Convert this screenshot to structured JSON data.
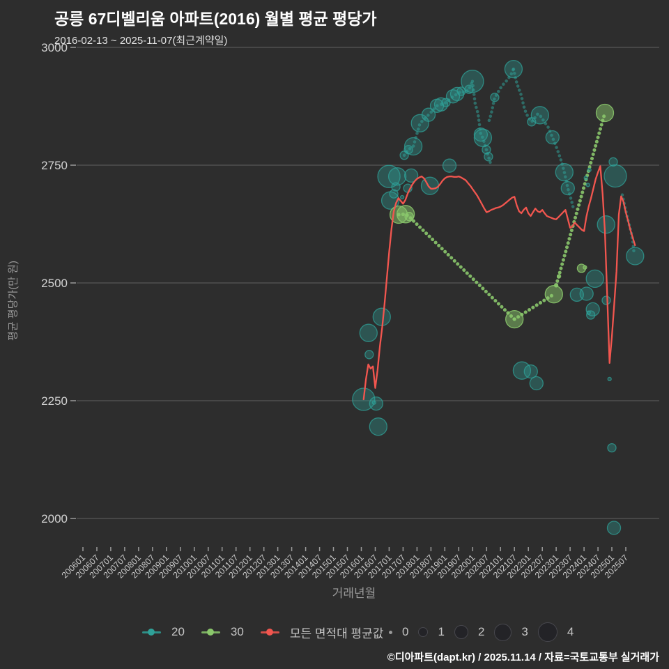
{
  "header": {
    "title": "공릉 67디벨리움 아파트(2016) 월별 평균 평당가",
    "subtitle": "2016-02-13 ~ 2025-11-07(최근계약일)"
  },
  "footer": {
    "credit": "©디아파트(dapt.kr) / 2025.11.14 / 자료=국토교통부 실거래가"
  },
  "chart_data": {
    "type": "scatter",
    "x_axis": {
      "title": "거래년월",
      "tick_labels": [
        "200601",
        "200607",
        "200701",
        "200707",
        "200801",
        "200807",
        "200901",
        "200907",
        "201001",
        "201007",
        "201101",
        "201107",
        "201201",
        "201207",
        "201301",
        "201307",
        "201401",
        "201407",
        "201501",
        "201507",
        "201601",
        "201607",
        "201701",
        "201707",
        "201801",
        "201807",
        "201901",
        "201907",
        "202001",
        "202007",
        "202101",
        "202107",
        "202201",
        "202207",
        "202301",
        "202307",
        "202401",
        "202407",
        "202501",
        "202507"
      ]
    },
    "y_axis": {
      "title": "평균 평당가(만 원)",
      "ticks": [
        3000,
        2750,
        2500,
        2250,
        2000
      ]
    },
    "legend_size_labels": [
      "0",
      "1",
      "2",
      "3",
      "4"
    ],
    "colors": {
      "py20": "#2fa198",
      "py30": "#8ac76b",
      "avg": "#f2564f",
      "grid": "#616161",
      "tick": "#9b9b9b",
      "axis_text": "#cccccc",
      "background": "#2d2d2d"
    },
    "series": {
      "py20": {
        "label": "20",
        "chains": [
          [
            [
              138.5,
              2771
            ],
            [
              140.3,
              2783
            ],
            [
              142.4,
              2790
            ],
            [
              145.3,
              2839
            ],
            [
              147.2,
              2848
            ],
            [
              149.0,
              2857
            ],
            [
              150.8,
              2866
            ],
            [
              152.6,
              2876
            ],
            [
              154.4,
              2879
            ],
            [
              156.5,
              2883
            ],
            [
              159.5,
              2896
            ],
            [
              161.3,
              2901
            ],
            [
              163.1,
              2907
            ],
            [
              164.6,
              2904
            ],
            [
              166.4,
              2911
            ],
            [
              167.9,
              2928
            ]
          ],
          [
            [
              167.9,
              2928
            ],
            [
              169.1,
              2880
            ],
            [
              170.3,
              2860
            ],
            [
              171.5,
              2815
            ],
            [
              172.4,
              2808
            ],
            [
              173.9,
              2783
            ],
            [
              174.8,
              2768
            ],
            [
              175.7,
              2754
            ]
          ],
          [
            [
              175.1,
              2845
            ],
            [
              176.0,
              2859
            ],
            [
              177.5,
              2894
            ],
            [
              178.4,
              2900
            ],
            [
              179.6,
              2911
            ],
            [
              180.5,
              2917
            ],
            [
              181.4,
              2923
            ],
            [
              182.6,
              2929
            ],
            [
              183.5,
              2935
            ],
            [
              184.4,
              2941
            ],
            [
              185.6,
              2954
            ]
          ],
          [
            [
              185.6,
              2954
            ],
            [
              186.8,
              2928
            ],
            [
              188.0,
              2910
            ],
            [
              188.6,
              2904
            ],
            [
              190.4,
              2868
            ],
            [
              191.9,
              2852
            ],
            [
              193.4,
              2842
            ],
            [
              194.6,
              2849
            ],
            [
              196.1,
              2859
            ],
            [
              197.0,
              2856
            ],
            [
              198.5,
              2845
            ],
            [
              200.6,
              2830
            ],
            [
              202.4,
              2809
            ],
            [
              204.5,
              2783
            ],
            [
              206.3,
              2757
            ],
            [
              207.5,
              2735
            ],
            [
              209.0,
              2701
            ],
            [
              210.5,
              2676
            ],
            [
              211.6,
              2655
            ]
          ],
          [
            [
              232.5,
              2687
            ],
            [
              233.7,
              2660
            ],
            [
              234.9,
              2634
            ],
            [
              236.1,
              2612
            ],
            [
              237.0,
              2590
            ],
            [
              237.6,
              2560
            ]
          ]
        ],
        "bubbles": [
          [
            121.0,
            2253,
            4
          ],
          [
            123.1,
            2394,
            3
          ],
          [
            123.4,
            2348,
            1
          ],
          [
            125.5,
            2246,
            0
          ],
          [
            126.4,
            2244,
            2
          ],
          [
            127.3,
            2195,
            3
          ],
          [
            128.8,
            2428,
            3
          ],
          [
            131.9,
            2726,
            4
          ],
          [
            132.5,
            2675,
            3
          ],
          [
            134.0,
            2689,
            1
          ],
          [
            134.9,
            2704,
            1
          ],
          [
            135.5,
            2726,
            3
          ],
          [
            137.6,
            2682,
            0
          ],
          [
            140.0,
            2701,
            1
          ],
          [
            141.5,
            2728,
            2
          ],
          [
            138.5,
            2771,
            1
          ],
          [
            140.3,
            2783,
            1
          ],
          [
            142.4,
            2790,
            3
          ],
          [
            145.3,
            2839,
            3
          ],
          [
            149.0,
            2857,
            2
          ],
          [
            152.6,
            2876,
            2
          ],
          [
            154.4,
            2879,
            2
          ],
          [
            156.5,
            2883,
            1
          ],
          [
            159.5,
            2896,
            2
          ],
          [
            161.3,
            2901,
            2
          ],
          [
            163.1,
            2907,
            1
          ],
          [
            166.4,
            2911,
            1
          ],
          [
            167.9,
            2928,
            4
          ],
          [
            149.6,
            2706,
            3
          ],
          [
            158.0,
            2749,
            2
          ],
          [
            171.5,
            2815,
            2
          ],
          [
            172.4,
            2808,
            3
          ],
          [
            173.9,
            2783,
            1
          ],
          [
            174.8,
            2768,
            1
          ],
          [
            177.5,
            2894,
            1
          ],
          [
            185.6,
            2954,
            3
          ],
          [
            189.2,
            2314,
            3
          ],
          [
            193.1,
            2312,
            2
          ],
          [
            195.5,
            2287,
            2
          ],
          [
            193.4,
            2842,
            1
          ],
          [
            197.0,
            2856,
            3
          ],
          [
            202.4,
            2809,
            2
          ],
          [
            207.5,
            2735,
            3
          ],
          [
            209.0,
            2701,
            2
          ],
          [
            212.9,
            2475,
            2
          ],
          [
            216.8,
            2723,
            0
          ],
          [
            217.7,
            2708,
            0
          ],
          [
            218.3,
            2740,
            0
          ],
          [
            217.1,
            2477,
            2
          ],
          [
            218.0,
            2437,
            0
          ],
          [
            218.9,
            2432,
            1
          ],
          [
            219.8,
            2444,
            2
          ],
          [
            220.7,
            2509,
            3
          ],
          [
            225.5,
            2624,
            3
          ],
          [
            225.6,
            2463,
            1
          ],
          [
            227.0,
            2296,
            0
          ],
          [
            228.0,
            2150,
            1
          ],
          [
            228.9,
            1980,
            2
          ],
          [
            228.6,
            2757,
            1
          ],
          [
            229.5,
            2727,
            4
          ],
          [
            238.0,
            2557,
            3
          ]
        ]
      },
      "py30": {
        "label": "30",
        "chains": [
          [
            [
              136.1,
              2645
            ],
            [
              139.1,
              2646
            ],
            [
              140.6,
              2641
            ],
            [
              142.0,
              2634
            ],
            [
              186.0,
              2423
            ]
          ],
          [
            [
              186.0,
              2423
            ],
            [
              203.0,
              2476
            ]
          ],
          [
            [
              204.0,
              2495
            ],
            [
              225.0,
              2861
            ]
          ]
        ],
        "bubbles": [
          [
            136.1,
            2645,
            3
          ],
          [
            139.1,
            2646,
            3
          ],
          [
            140.6,
            2641,
            1
          ],
          [
            186.0,
            2423,
            3
          ],
          [
            203.0,
            2476,
            3
          ],
          [
            204.0,
            2495,
            0
          ],
          [
            205.2,
            2514,
            0
          ],
          [
            214.9,
            2531,
            1
          ],
          [
            216.4,
            2533,
            0
          ],
          [
            225.0,
            2861,
            3
          ]
        ]
      },
      "avg": {
        "label": "모든 면적대 평균값",
        "line": [
          [
            121,
            2253
          ],
          [
            122,
            2295
          ],
          [
            123,
            2327
          ],
          [
            124,
            2318
          ],
          [
            125,
            2323
          ],
          [
            126,
            2277
          ],
          [
            127,
            2315
          ],
          [
            128,
            2365
          ],
          [
            129,
            2405
          ],
          [
            130,
            2455
          ],
          [
            131,
            2510
          ],
          [
            132,
            2565
          ],
          [
            133,
            2615
          ],
          [
            134,
            2652
          ],
          [
            135,
            2670
          ],
          [
            136,
            2680
          ],
          [
            137,
            2674
          ],
          [
            138,
            2668
          ],
          [
            139,
            2676
          ],
          [
            140,
            2690
          ],
          [
            141,
            2700
          ],
          [
            142,
            2709
          ],
          [
            143,
            2716
          ],
          [
            144,
            2721
          ],
          [
            145,
            2724
          ],
          [
            146,
            2726
          ],
          [
            147,
            2722
          ],
          [
            148,
            2714
          ],
          [
            149,
            2705
          ],
          [
            150,
            2700
          ],
          [
            151,
            2700
          ],
          [
            152,
            2701
          ],
          [
            153,
            2704
          ],
          [
            154,
            2710
          ],
          [
            155,
            2717
          ],
          [
            156,
            2722
          ],
          [
            157,
            2725
          ],
          [
            158,
            2726
          ],
          [
            159,
            2726
          ],
          [
            160,
            2725
          ],
          [
            161,
            2725
          ],
          [
            162,
            2726
          ],
          [
            163,
            2724
          ],
          [
            164,
            2721
          ],
          [
            165,
            2718
          ],
          [
            166,
            2712
          ],
          [
            167,
            2706
          ],
          [
            168,
            2699
          ],
          [
            169,
            2692
          ],
          [
            170,
            2685
          ],
          [
            171,
            2676
          ],
          [
            172,
            2667
          ],
          [
            173,
            2658
          ],
          [
            174,
            2650
          ],
          [
            175,
            2652
          ],
          [
            176,
            2655
          ],
          [
            177,
            2657
          ],
          [
            178,
            2659
          ],
          [
            179,
            2660
          ],
          [
            180,
            2662
          ],
          [
            181,
            2665
          ],
          [
            182,
            2669
          ],
          [
            183,
            2673
          ],
          [
            184,
            2677
          ],
          [
            185,
            2681
          ],
          [
            186,
            2683
          ],
          [
            187,
            2665
          ],
          [
            188,
            2652
          ],
          [
            189,
            2648
          ],
          [
            190,
            2655
          ],
          [
            191,
            2660
          ],
          [
            192,
            2648
          ],
          [
            193,
            2642
          ],
          [
            194,
            2650
          ],
          [
            195,
            2658
          ],
          [
            196,
            2652
          ],
          [
            197,
            2650
          ],
          [
            198,
            2655
          ],
          [
            199,
            2648
          ],
          [
            200,
            2642
          ],
          [
            201,
            2640
          ],
          [
            202,
            2638
          ],
          [
            203,
            2636
          ],
          [
            204,
            2635
          ],
          [
            205,
            2640
          ],
          [
            206,
            2645
          ],
          [
            207,
            2650
          ],
          [
            208,
            2655
          ],
          [
            209,
            2636
          ],
          [
            210,
            2617
          ],
          [
            211,
            2620
          ],
          [
            212,
            2628
          ],
          [
            213,
            2623
          ],
          [
            214,
            2618
          ],
          [
            215,
            2613
          ],
          [
            216,
            2610
          ],
          [
            217,
            2640
          ],
          [
            218,
            2662
          ],
          [
            219,
            2680
          ],
          [
            220,
            2700
          ],
          [
            221,
            2720
          ],
          [
            222,
            2735
          ],
          [
            223,
            2748
          ],
          [
            224,
            2690
          ],
          [
            225,
            2610
          ],
          [
            226,
            2470
          ],
          [
            227,
            2330
          ],
          [
            228,
            2385
          ],
          [
            229,
            2455
          ],
          [
            230,
            2525
          ],
          [
            231,
            2645
          ],
          [
            232,
            2684
          ],
          [
            233,
            2672
          ],
          [
            234,
            2650
          ],
          [
            235,
            2632
          ],
          [
            236,
            2612
          ],
          [
            237,
            2596
          ],
          [
            238,
            2580
          ]
        ]
      }
    }
  }
}
